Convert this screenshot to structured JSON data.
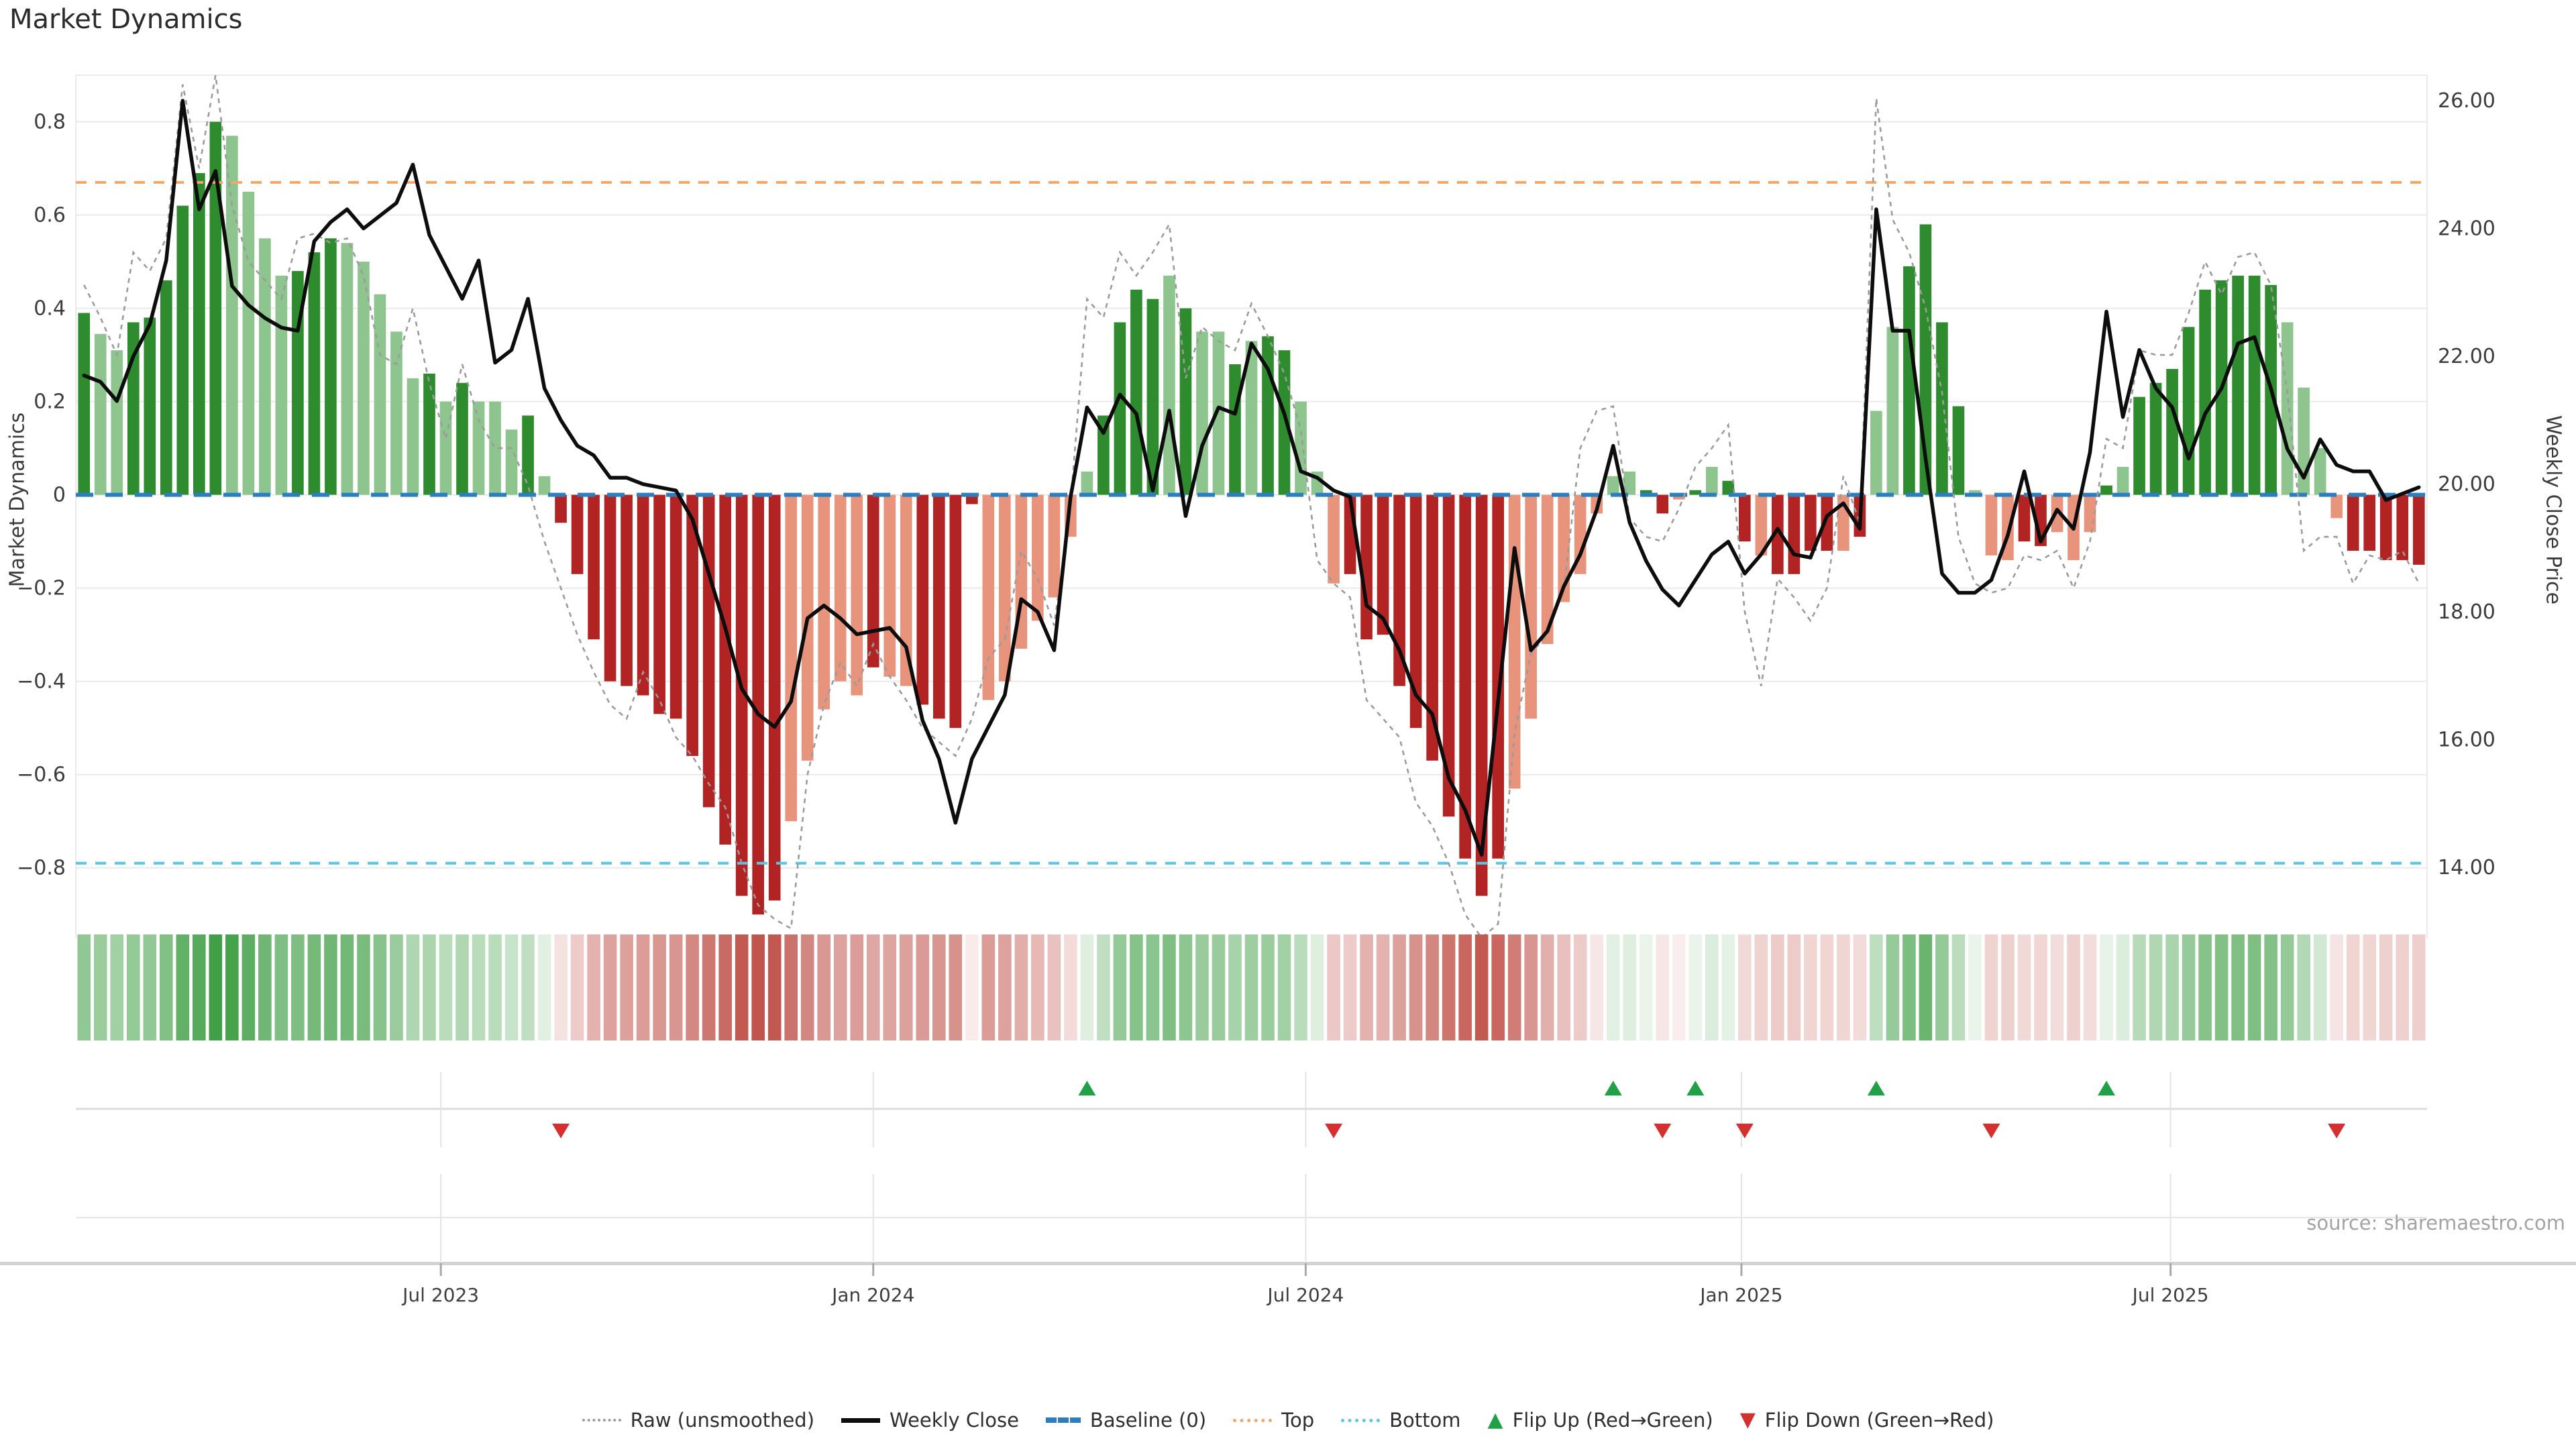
{
  "title": "Market Dynamics",
  "source": "source: sharemaestro.com",
  "left_axis": {
    "label": "Market Dynamics",
    "tick_values": [
      0.8,
      0.6,
      0.4,
      0.2,
      0,
      -0.2,
      -0.4,
      -0.6,
      -0.8
    ],
    "tick_labels": [
      "0.8",
      "0.6",
      "0.4",
      "0.2",
      "0",
      "−0.2",
      "−0.4",
      "−0.6",
      "−0.8"
    ]
  },
  "right_axis": {
    "label": "Weekly Close Price",
    "tick_values": [
      26,
      24,
      22,
      20,
      18,
      16,
      14
    ],
    "tick_labels": [
      "26.00",
      "24.00",
      "22.00",
      "20.00",
      "18.00",
      "16.00",
      "14.00"
    ]
  },
  "x_axis": {
    "ticks": [
      {
        "label": "Jul 2023",
        "week": 22.2
      },
      {
        "label": "Jan 2024",
        "week": 48.5
      },
      {
        "label": "Jul 2024",
        "week": 74.8
      },
      {
        "label": "Jan 2025",
        "week": 101.3
      },
      {
        "label": "Jul 2025",
        "week": 127.4
      }
    ]
  },
  "legend": [
    {
      "label": "Raw (unsmoothed)",
      "style": "dash-gray"
    },
    {
      "label": "Weekly Close",
      "style": "solid-black"
    },
    {
      "label": "Baseline (0)",
      "style": "dash-blue"
    },
    {
      "label": "Top",
      "style": "dot-orange"
    },
    {
      "label": "Bottom",
      "style": "dot-cyan"
    },
    {
      "label": "Flip Up (Red→Green)",
      "style": "tri-up"
    },
    {
      "label": "Flip Down (Green→Red)",
      "style": "tri-down"
    }
  ],
  "colors": {
    "bar_pos_strong": "#2e8b2e",
    "bar_pos_soft": "#8ec48e",
    "bar_neg_strong": "#b22423",
    "bar_neg_soft": "#e8947d",
    "strip_pos": "#2f9635",
    "strip_neg": "#c1544c",
    "baseline": "#2b7fc1",
    "top_line": "#f4a667",
    "bottom_line": "#55c7e8",
    "raw_line": "#9b9b9b",
    "close_line": "#0d0d0d",
    "flip_up": "#21a147",
    "flip_down": "#d62f2f",
    "grid": "#eaeaea",
    "axis_line": "#d2d2d2",
    "tick_text": "#3b3b3b",
    "month_text": "#3e3e3e"
  },
  "chart_data": {
    "type": "combo",
    "description": "Weekly market-dynamics oscillator bars (left axis) with raw unsmoothed line, weekly close price line (right axis), threshold lines, color strip and flip markers",
    "ylim": [
      -0.95,
      0.9
    ],
    "price_ylim": [
      12.9,
      26.4
    ],
    "baseline": 0,
    "top_threshold": 0.67,
    "bottom_threshold": -0.79,
    "weeks": 143,
    "dynamics": [
      0.39,
      0.345,
      0.31,
      0.37,
      0.38,
      0.46,
      0.62,
      0.69,
      0.8,
      0.77,
      0.65,
      0.55,
      0.47,
      0.48,
      0.52,
      0.55,
      0.54,
      0.5,
      0.43,
      0.35,
      0.25,
      0.26,
      0.2,
      0.24,
      0.2,
      0.2,
      0.14,
      0.17,
      0.04,
      -0.06,
      -0.17,
      -0.31,
      -0.4,
      -0.41,
      -0.43,
      -0.47,
      -0.48,
      -0.56,
      -0.67,
      -0.75,
      -0.86,
      -0.9,
      -0.87,
      -0.7,
      -0.57,
      -0.46,
      -0.4,
      -0.43,
      -0.37,
      -0.39,
      -0.41,
      -0.45,
      -0.48,
      -0.5,
      -0.02,
      -0.44,
      -0.4,
      -0.33,
      -0.27,
      -0.22,
      -0.09,
      0.05,
      0.17,
      0.37,
      0.44,
      0.42,
      0.47,
      0.4,
      0.35,
      0.35,
      0.28,
      0.33,
      0.34,
      0.31,
      0.2,
      0.05,
      -0.19,
      -0.17,
      -0.31,
      -0.3,
      -0.41,
      -0.5,
      -0.57,
      -0.69,
      -0.78,
      -0.86,
      -0.78,
      -0.63,
      -0.48,
      -0.32,
      -0.23,
      -0.17,
      -0.04,
      0.04,
      0.05,
      0.01,
      -0.04,
      -0.01,
      0.01,
      0.06,
      0.03,
      -0.1,
      -0.13,
      -0.17,
      -0.17,
      -0.12,
      -0.12,
      -0.12,
      -0.09,
      0.18,
      0.36,
      0.49,
      0.58,
      0.37,
      0.19,
      0.01,
      -0.13,
      -0.14,
      -0.1,
      -0.11,
      -0.08,
      -0.14,
      -0.08,
      0.02,
      0.06,
      0.21,
      0.24,
      0.27,
      0.36,
      0.44,
      0.46,
      0.47,
      0.47,
      0.45,
      0.37,
      0.23,
      0.1,
      -0.05,
      -0.12,
      -0.12,
      -0.14,
      -0.14,
      -0.15
    ],
    "shade": "dllddddddlllldddllllldldllldlddddddddddddddllllldllddddlllllllddddldlldlddlllddddddddddllllllllddldlddlddddldllddddlllddllldldddddddddlllldddddddd",
    "raw": [
      0.45,
      0.38,
      0.3,
      0.52,
      0.48,
      0.55,
      0.88,
      0.7,
      0.9,
      0.62,
      0.5,
      0.46,
      0.42,
      0.55,
      0.56,
      0.54,
      0.55,
      0.47,
      0.3,
      0.28,
      0.4,
      0.24,
      0.12,
      0.28,
      0.16,
      0.1,
      0.1,
      0.02,
      -0.1,
      -0.2,
      -0.3,
      -0.38,
      -0.45,
      -0.48,
      -0.38,
      -0.44,
      -0.52,
      -0.56,
      -0.62,
      -0.67,
      -0.79,
      -0.88,
      -0.91,
      -0.93,
      -0.6,
      -0.45,
      -0.36,
      -0.41,
      -0.32,
      -0.39,
      -0.44,
      -0.5,
      -0.53,
      -0.56,
      -0.48,
      -0.35,
      -0.31,
      -0.12,
      -0.18,
      -0.28,
      -0.02,
      0.42,
      0.38,
      0.52,
      0.47,
      0.52,
      0.58,
      0.25,
      0.36,
      0.33,
      0.31,
      0.41,
      0.34,
      0.26,
      0.14,
      -0.14,
      -0.19,
      -0.22,
      -0.44,
      -0.48,
      -0.52,
      -0.66,
      -0.71,
      -0.79,
      -0.9,
      -0.95,
      -0.92,
      -0.51,
      -0.34,
      -0.3,
      -0.2,
      0.1,
      0.18,
      0.19,
      -0.05,
      -0.09,
      -0.1,
      -0.03,
      0.06,
      0.1,
      0.15,
      -0.25,
      -0.41,
      -0.18,
      -0.22,
      -0.27,
      -0.2,
      0.04,
      -0.06,
      0.85,
      0.59,
      0.52,
      0.4,
      0.22,
      -0.09,
      -0.19,
      -0.21,
      -0.2,
      -0.13,
      -0.14,
      -0.12,
      -0.2,
      -0.1,
      0.12,
      0.1,
      0.31,
      0.3,
      0.3,
      0.39,
      0.5,
      0.43,
      0.51,
      0.52,
      0.45,
      0.22,
      -0.12,
      -0.09,
      -0.09,
      -0.19,
      -0.13,
      -0.14,
      -0.12,
      -0.19
    ],
    "weekly_close": [
      21.7,
      21.6,
      21.3,
      22.0,
      22.5,
      23.5,
      26.0,
      24.3,
      24.9,
      23.1,
      22.8,
      22.6,
      22.45,
      22.4,
      23.8,
      24.1,
      24.3,
      24.0,
      24.2,
      24.4,
      25.0,
      23.9,
      23.4,
      22.9,
      23.5,
      21.9,
      22.1,
      22.9,
      21.5,
      21.0,
      20.6,
      20.45,
      20.1,
      20.1,
      20.0,
      19.95,
      19.9,
      19.45,
      18.6,
      17.75,
      16.8,
      16.4,
      16.2,
      16.6,
      17.9,
      18.1,
      17.9,
      17.65,
      17.7,
      17.75,
      17.45,
      16.3,
      15.7,
      14.7,
      15.7,
      16.2,
      16.7,
      18.2,
      18.0,
      17.4,
      19.8,
      21.2,
      20.8,
      21.4,
      21.1,
      19.9,
      21.15,
      19.5,
      20.6,
      21.2,
      21.1,
      22.2,
      21.8,
      21.1,
      20.2,
      20.1,
      19.9,
      19.8,
      18.1,
      17.9,
      17.4,
      16.7,
      16.4,
      15.4,
      14.9,
      14.2,
      16.6,
      19.0,
      17.4,
      17.7,
      18.4,
      18.9,
      19.6,
      20.6,
      19.4,
      18.8,
      18.35,
      18.1,
      18.5,
      18.9,
      19.1,
      18.6,
      18.9,
      19.3,
      18.9,
      18.85,
      19.5,
      19.7,
      19.3,
      24.3,
      22.4,
      22.4,
      20.4,
      18.6,
      18.3,
      18.3,
      18.5,
      19.2,
      20.2,
      19.1,
      19.6,
      19.3,
      20.5,
      22.7,
      21.05,
      22.1,
      21.5,
      21.2,
      20.4,
      21.1,
      21.5,
      22.2,
      22.3,
      21.5,
      20.55,
      20.1,
      20.7,
      20.3,
      20.2,
      20.2,
      19.75,
      19.85,
      19.95
    ],
    "flip_up_weeks": [
      61,
      93,
      98,
      109,
      123
    ],
    "flip_down_weeks": [
      29,
      76,
      96,
      101,
      116,
      137
    ]
  }
}
